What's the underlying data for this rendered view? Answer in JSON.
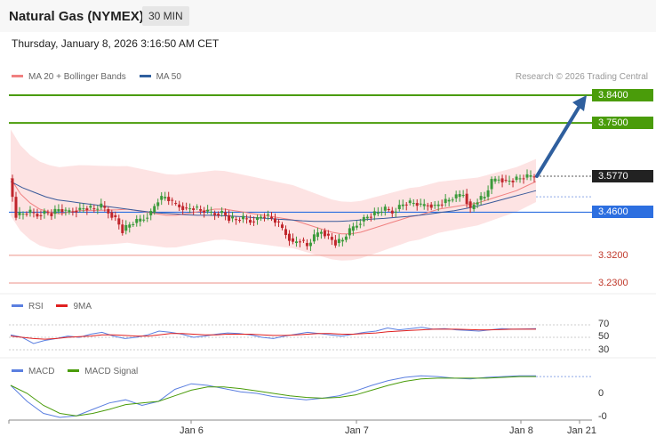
{
  "header": {
    "title": "Natural Gas (NYMEX)",
    "timeframe": "30 MIN",
    "datetime": "Thursday, January 8, 2026 3:16:50 AM CET"
  },
  "legend": {
    "ma20": "MA 20 + Bollinger Bands",
    "ma50": "MA 50",
    "credit": "Research © 2026 Trading Central",
    "rsi": "RSI",
    "rsi_ma": "9MA",
    "macd": "MACD",
    "macd_signal": "MACD Signal"
  },
  "colors": {
    "green_level": "#4a9c0a",
    "current_price": "#222222",
    "pivot_blue": "#2d6fe0",
    "support_red": "#e8756b",
    "ma20": "#f08080",
    "ma50": "#3a5a9a",
    "arrow": "#2f5f9e"
  },
  "price_levels": [
    {
      "value": "3.8400",
      "type": "resistance"
    },
    {
      "value": "3.7500",
      "type": "resistance"
    },
    {
      "value": "3.5770",
      "type": "current"
    },
    {
      "value": "3.4600",
      "type": "pivot"
    },
    {
      "value": "3.3200",
      "type": "support"
    },
    {
      "value": "3.2300",
      "type": "support"
    }
  ],
  "rsi_levels": [
    "70",
    "50",
    "30"
  ],
  "macd_levels": [
    "0",
    "-0"
  ],
  "x_axis": [
    "Jan 6",
    "Jan 7",
    "Jan 8",
    "Jan 21"
  ],
  "chart_data": {
    "type": "line",
    "instrument": "Natural Gas (NYMEX)",
    "timeframe": "30 MIN",
    "price_series": [
      3.57,
      3.45,
      3.455,
      3.46,
      3.45,
      3.46,
      3.455,
      3.47,
      3.46,
      3.465,
      3.47,
      3.475,
      3.47,
      3.48,
      3.46,
      3.44,
      3.4,
      3.42,
      3.43,
      3.44,
      3.46,
      3.5,
      3.51,
      3.49,
      3.48,
      3.47,
      3.475,
      3.465,
      3.46,
      3.455,
      3.46,
      3.44,
      3.435,
      3.44,
      3.43,
      3.44,
      3.45,
      3.44,
      3.42,
      3.39,
      3.36,
      3.37,
      3.35,
      3.38,
      3.4,
      3.38,
      3.36,
      3.37,
      3.4,
      3.42,
      3.44,
      3.45,
      3.46,
      3.47,
      3.46,
      3.48,
      3.49,
      3.49,
      3.48,
      3.485,
      3.48,
      3.49,
      3.5,
      3.51,
      3.52,
      3.47,
      3.5,
      3.51,
      3.56,
      3.57,
      3.56,
      3.565,
      3.57,
      3.575,
      3.577
    ],
    "ma20_series": [
      3.57,
      3.52,
      3.49,
      3.47,
      3.46,
      3.455,
      3.46,
      3.465,
      3.466,
      3.466,
      3.467,
      3.468,
      3.47,
      3.465,
      3.46,
      3.455,
      3.45,
      3.45,
      3.455,
      3.46,
      3.465,
      3.47,
      3.47,
      3.465,
      3.46,
      3.455,
      3.45,
      3.445,
      3.44,
      3.435,
      3.425,
      3.415,
      3.405,
      3.395,
      3.39,
      3.39,
      3.395,
      3.405,
      3.415,
      3.425,
      3.435,
      3.445,
      3.45,
      3.46,
      3.47,
      3.475,
      3.48,
      3.485,
      3.49,
      3.5,
      3.51,
      3.52,
      3.53,
      3.545,
      3.56
    ],
    "ma50_series": [
      3.56,
      3.54,
      3.525,
      3.51,
      3.5,
      3.495,
      3.49,
      3.485,
      3.48,
      3.475,
      3.47,
      3.465,
      3.46,
      3.457,
      3.455,
      3.452,
      3.45,
      3.45,
      3.449,
      3.447,
      3.445,
      3.442,
      3.44,
      3.437,
      3.435,
      3.432,
      3.43,
      3.43,
      3.43,
      3.432,
      3.435,
      3.438,
      3.44,
      3.443,
      3.446,
      3.45,
      3.455,
      3.46,
      3.465,
      3.472,
      3.48,
      3.49,
      3.5,
      3.51,
      3.52,
      3.53
    ],
    "projection": {
      "from": 3.577,
      "to": 3.84
    },
    "rsi_series": [
      54,
      50,
      40,
      45,
      48,
      52,
      50,
      55,
      58,
      52,
      48,
      50,
      54,
      60,
      58,
      55,
      50,
      52,
      55,
      57,
      56,
      54,
      50,
      48,
      52,
      55,
      58,
      56,
      54,
      52,
      55,
      58,
      60,
      65,
      62,
      64,
      66,
      63,
      64,
      62,
      61,
      60,
      62,
      64,
      63,
      63.5,
      64
    ],
    "rsi_ma_series": [
      52,
      50,
      48,
      47,
      48,
      50,
      51,
      52,
      54,
      54,
      53,
      52,
      52,
      54,
      56,
      56,
      55,
      54,
      54,
      55,
      55,
      55,
      54,
      53,
      53,
      54,
      55,
      56,
      56,
      55,
      55,
      56,
      57,
      59,
      60,
      61,
      62,
      63,
      63,
      63,
      62.5,
      62,
      62,
      62.5,
      63,
      63,
      63
    ],
    "macd_series": [
      0.01,
      -0.01,
      -0.025,
      -0.03,
      -0.028,
      -0.02,
      -0.012,
      -0.008,
      -0.015,
      -0.01,
      0.005,
      0.012,
      0.01,
      0.006,
      0.002,
      0,
      -0.004,
      -0.006,
      -0.008,
      -0.006,
      -0.003,
      0.003,
      0.01,
      0.016,
      0.02,
      0.022,
      0.021,
      0.019,
      0.018,
      0.02,
      0.021,
      0.022,
      0.022
    ],
    "macd_signal_series": [
      0.01,
      0.0,
      -0.015,
      -0.025,
      -0.028,
      -0.025,
      -0.02,
      -0.014,
      -0.012,
      -0.01,
      -0.003,
      0.004,
      0.008,
      0.008,
      0.006,
      0.003,
      0.0,
      -0.003,
      -0.005,
      -0.006,
      -0.005,
      -0.002,
      0.004,
      0.01,
      0.015,
      0.018,
      0.019,
      0.019,
      0.019,
      0.019,
      0.02,
      0.021,
      0.021
    ]
  }
}
